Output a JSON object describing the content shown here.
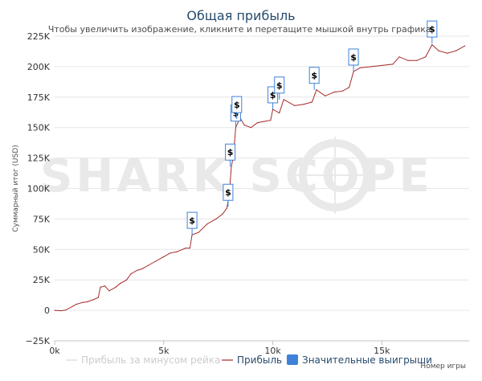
{
  "chart_data": {
    "type": "line",
    "title": "Общая прибыль",
    "subtitle": "Чтобы увеличить изображение, кликните и перетащите мышкой внутрь графика.",
    "ylabel": "Суммарный итог (USD)",
    "xlabel": "Номер игры",
    "xlim": [
      0,
      19000
    ],
    "ylim": [
      -25000,
      225000
    ],
    "x_ticks": [
      "0k",
      "5k",
      "10k",
      "15k"
    ],
    "x_tick_values": [
      0,
      5000,
      10000,
      15000
    ],
    "y_ticks": [
      "−25K",
      "0",
      "25K",
      "50K",
      "75K",
      "100K",
      "125K",
      "150K",
      "175K",
      "200K",
      "225K"
    ],
    "y_tick_values": [
      -25000,
      0,
      25000,
      50000,
      75000,
      100000,
      125000,
      150000,
      175000,
      200000,
      225000
    ],
    "grid": true,
    "legend_position": "bottom",
    "series": [
      {
        "name": "Прибыль за минусом рейка",
        "color": "#d9d9d9",
        "visible": false,
        "points": []
      },
      {
        "name": "Прибыль",
        "color": "#a52a2a",
        "visible": true,
        "points": [
          [
            0,
            0
          ],
          [
            300,
            -300
          ],
          [
            500,
            200
          ],
          [
            800,
            3000
          ],
          [
            1000,
            5000
          ],
          [
            1300,
            6500
          ],
          [
            1500,
            7000
          ],
          [
            1800,
            9000
          ],
          [
            2000,
            10500
          ],
          [
            2100,
            19000
          ],
          [
            2300,
            20000
          ],
          [
            2500,
            16000
          ],
          [
            2800,
            19000
          ],
          [
            3000,
            22000
          ],
          [
            3300,
            25000
          ],
          [
            3500,
            30000
          ],
          [
            3800,
            33000
          ],
          [
            4000,
            34000
          ],
          [
            4300,
            37000
          ],
          [
            4600,
            40000
          ],
          [
            5000,
            44000
          ],
          [
            5300,
            47000
          ],
          [
            5600,
            48000
          ],
          [
            6000,
            51000
          ],
          [
            6200,
            51000
          ],
          [
            6300,
            62000
          ],
          [
            6600,
            64000
          ],
          [
            7000,
            71000
          ],
          [
            7400,
            75000
          ],
          [
            7700,
            79000
          ],
          [
            7900,
            84000
          ],
          [
            8000,
            95000
          ],
          [
            8100,
            118000
          ],
          [
            8200,
            127000
          ],
          [
            8300,
            150000
          ],
          [
            8500,
            158000
          ],
          [
            8700,
            152000
          ],
          [
            9000,
            150000
          ],
          [
            9300,
            154000
          ],
          [
            9600,
            155000
          ],
          [
            9900,
            156000
          ],
          [
            10000,
            165000
          ],
          [
            10300,
            162000
          ],
          [
            10500,
            173000
          ],
          [
            11000,
            168000
          ],
          [
            11400,
            169000
          ],
          [
            11800,
            171000
          ],
          [
            12000,
            181000
          ],
          [
            12400,
            176000
          ],
          [
            12800,
            179000
          ],
          [
            13200,
            180000
          ],
          [
            13500,
            183000
          ],
          [
            13700,
            196000
          ],
          [
            14000,
            199000
          ],
          [
            14500,
            200000
          ],
          [
            15000,
            201000
          ],
          [
            15500,
            202000
          ],
          [
            15800,
            208000
          ],
          [
            16200,
            205000
          ],
          [
            16600,
            205000
          ],
          [
            17000,
            208000
          ],
          [
            17300,
            218000
          ],
          [
            17600,
            213000
          ],
          [
            18000,
            211000
          ],
          [
            18400,
            213000
          ],
          [
            18800,
            217000
          ]
        ]
      }
    ],
    "markers": {
      "name": "Значительные выигрыши",
      "label": "$",
      "color": "#3d82d8",
      "points": [
        [
          6300,
          62000
        ],
        [
          7950,
          85000
        ],
        [
          8050,
          118000
        ],
        [
          8300,
          150000
        ],
        [
          8350,
          157000
        ],
        [
          10000,
          165000
        ],
        [
          10300,
          173000
        ],
        [
          11900,
          181000
        ],
        [
          13700,
          196000
        ],
        [
          17300,
          219000
        ]
      ]
    },
    "watermark": "SHARK SCOPE"
  }
}
